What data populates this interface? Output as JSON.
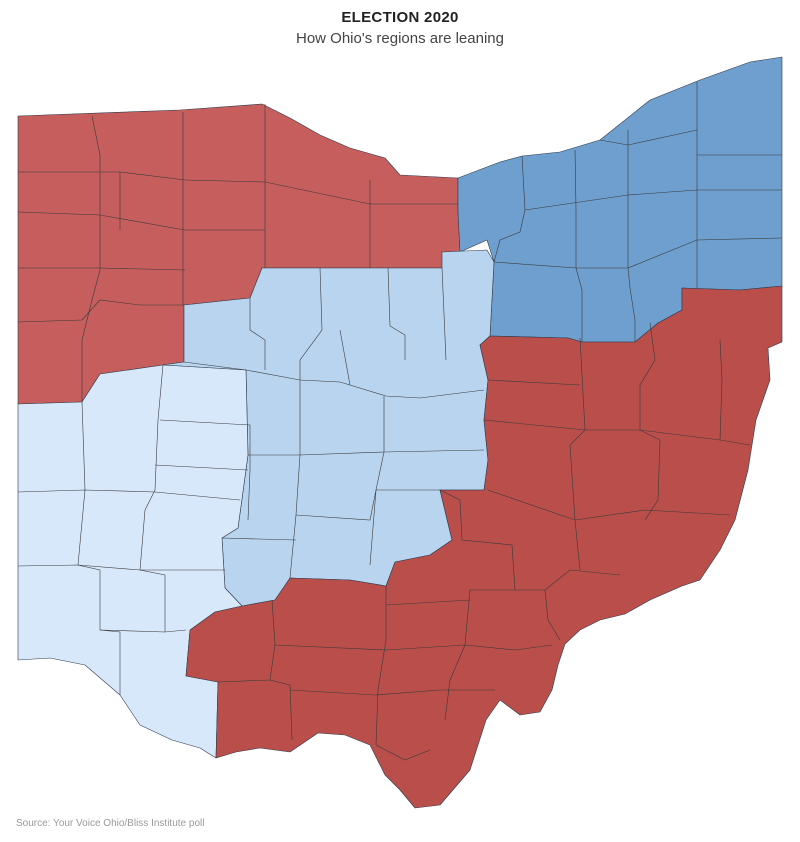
{
  "header": {
    "title": "ELECTION 2020",
    "subtitle": "How Ohio's regions are leaning"
  },
  "footer": {
    "source": "Source: Your Voice Ohio/Bliss Institute poll"
  },
  "map": {
    "state": "Ohio",
    "colors": {
      "red_northwest": "#c55e5c",
      "red_southeast": "#b94e4b",
      "blue_northeast": "#6f9fce",
      "light_blue_central": "#b9d4ef",
      "pale_blue_southwest": "#d8e8fb",
      "border": "#2f3b4a"
    },
    "regions": [
      {
        "id": "northwest",
        "color_key": "red_northwest"
      },
      {
        "id": "northeast",
        "color_key": "blue_northeast"
      },
      {
        "id": "central",
        "color_key": "light_blue_central"
      },
      {
        "id": "southwest",
        "color_key": "pale_blue_southwest"
      },
      {
        "id": "southeast",
        "color_key": "red_southeast"
      }
    ]
  }
}
